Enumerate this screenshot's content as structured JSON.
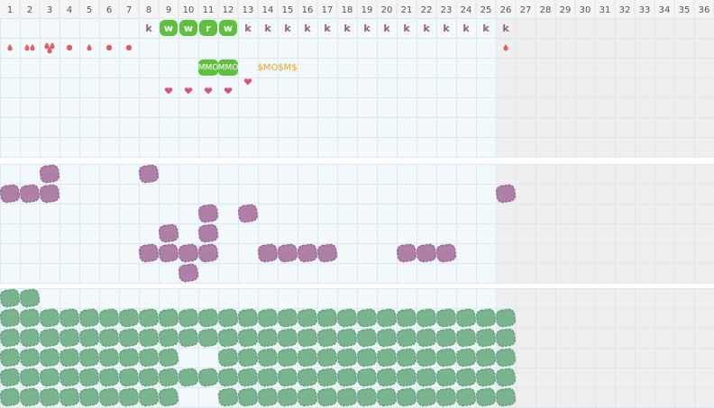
{
  "header": {
    "columns": [
      "1",
      "2",
      "3",
      "4",
      "5",
      "6",
      "7",
      "8",
      "9",
      "10",
      "11",
      "12",
      "13",
      "14",
      "15",
      "16",
      "17",
      "18",
      "19",
      "20",
      "21",
      "22",
      "23",
      "24",
      "25",
      "26",
      "27",
      "28",
      "29",
      "30",
      "31",
      "32",
      "33",
      "34",
      "35",
      "36"
    ]
  },
  "tracker": {
    "letters": [
      null,
      null,
      null,
      null,
      null,
      null,
      null,
      "k",
      "w",
      "w",
      "r",
      "w",
      "k",
      "k",
      "k",
      "k",
      "k",
      "k",
      "k",
      "k",
      "k",
      "k",
      "k",
      "k",
      "k",
      "k"
    ],
    "tags": [
      null,
      null,
      null,
      null,
      null,
      null,
      null,
      null,
      null,
      null,
      "MMO",
      "MMO",
      null,
      "$MO",
      "$M$"
    ]
  }
}
